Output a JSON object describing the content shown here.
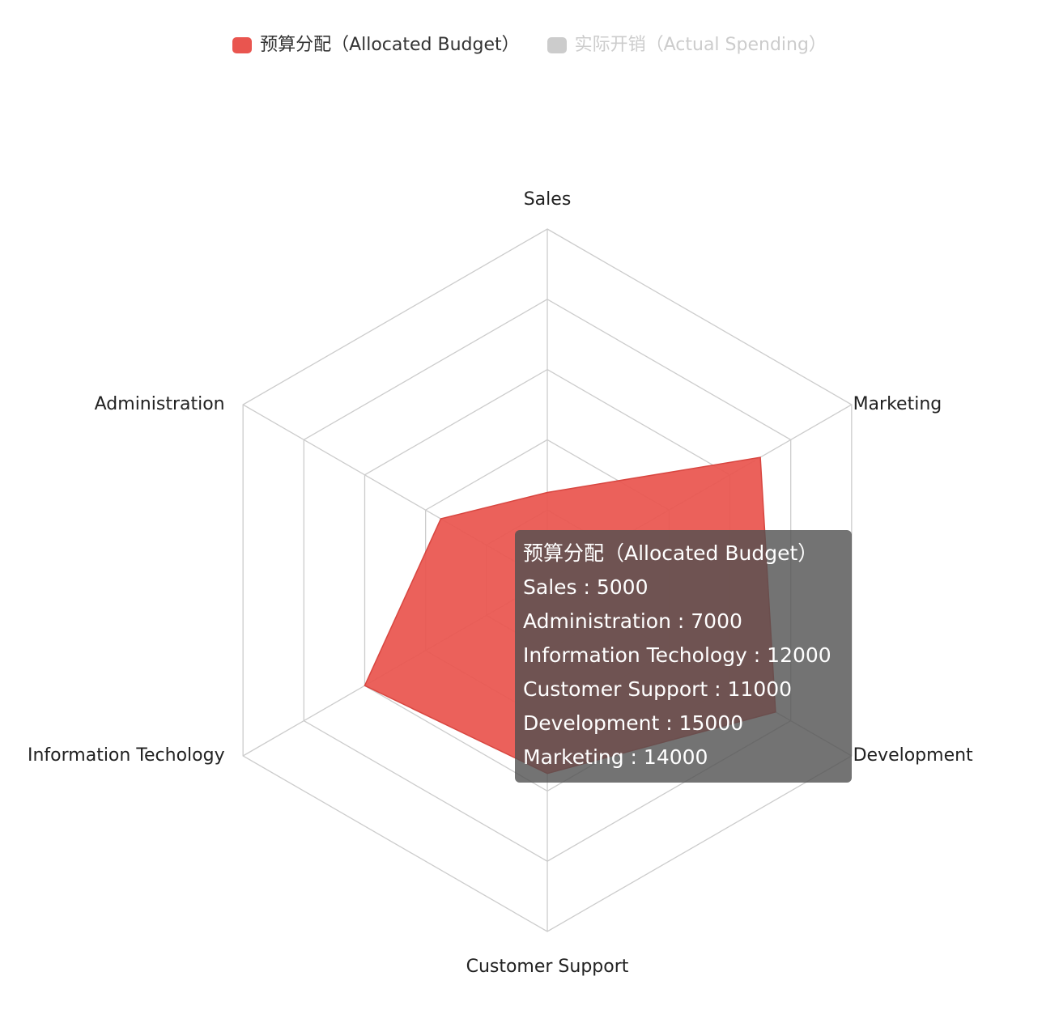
{
  "chart_data": {
    "type": "radar",
    "indicators": [
      "Sales",
      "Marketing",
      "Development",
      "Customer Support",
      "Information Techology",
      "Administration"
    ],
    "max": 20000,
    "split_number": 5,
    "series": [
      {
        "name": "预算分配（Allocated Budget）",
        "color": "#e9554f",
        "active": true,
        "values": {
          "Sales": 5000,
          "Administration": 7000,
          "Information Techology": 12000,
          "Customer Support": 11000,
          "Development": 15000,
          "Marketing": 14000
        }
      },
      {
        "name": "实际开销（Actual Spending）",
        "color": "#cccccc",
        "active": false
      }
    ],
    "grid_color": "#cccccc",
    "legend_position": "top-center"
  },
  "legend": {
    "items": [
      {
        "label": "预算分配（Allocated Budget）",
        "color": "#e9554f"
      },
      {
        "label": "实际开销（Actual Spending）",
        "color": "#cccccc"
      }
    ]
  },
  "tooltip": {
    "title": "预算分配（Allocated Budget）",
    "rows": [
      "Sales : 5000",
      "Administration : 7000",
      "Information Techology : 12000",
      "Customer Support : 11000",
      "Development : 15000",
      "Marketing : 14000"
    ]
  }
}
